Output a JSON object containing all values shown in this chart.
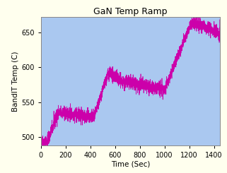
{
  "title": "GaN Temp Ramp",
  "xlabel": "Time (Sec)",
  "ylabel": "BandIT Temp (C)",
  "background_outer": "#ffffee",
  "background_plot": "#aac8f0",
  "line_color": "#cc00aa",
  "xlim": [
    0,
    1450
  ],
  "ylim": [
    488,
    672
  ],
  "xticks": [
    0,
    200,
    400,
    600,
    800,
    1000,
    1200,
    1400
  ],
  "yticks": [
    500,
    550,
    600,
    650
  ],
  "title_fontsize": 9,
  "label_fontsize": 7.5,
  "tick_fontsize": 7,
  "segments": [
    {
      "x_start": 0,
      "x_end": 30,
      "y_start": 493,
      "y_end": 492,
      "noise": 5
    },
    {
      "x_start": 30,
      "x_end": 55,
      "y_start": 492,
      "y_end": 494,
      "noise": 5
    },
    {
      "x_start": 55,
      "x_end": 140,
      "y_start": 494,
      "y_end": 535,
      "noise": 5
    },
    {
      "x_start": 140,
      "x_end": 430,
      "y_start": 535,
      "y_end": 528,
      "noise": 5
    },
    {
      "x_start": 430,
      "x_end": 540,
      "y_start": 528,
      "y_end": 590,
      "noise": 4
    },
    {
      "x_start": 540,
      "x_end": 560,
      "y_start": 590,
      "y_end": 592,
      "noise": 4
    },
    {
      "x_start": 560,
      "x_end": 650,
      "y_start": 592,
      "y_end": 580,
      "noise": 5
    },
    {
      "x_start": 650,
      "x_end": 1000,
      "y_start": 580,
      "y_end": 568,
      "noise": 5
    },
    {
      "x_start": 1000,
      "x_end": 1210,
      "y_start": 568,
      "y_end": 662,
      "noise": 4
    },
    {
      "x_start": 1210,
      "x_end": 1260,
      "y_start": 662,
      "y_end": 663,
      "noise": 5
    },
    {
      "x_start": 1260,
      "x_end": 1450,
      "y_start": 663,
      "y_end": 649,
      "noise": 5
    }
  ]
}
